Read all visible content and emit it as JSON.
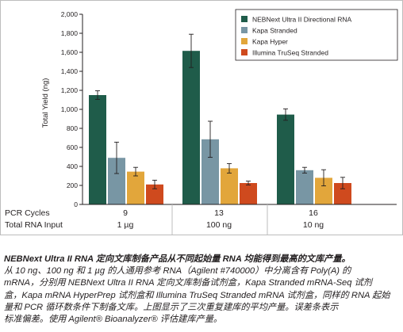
{
  "chart_data": {
    "type": "bar",
    "ylabel": "Total Yield (ng)",
    "ylim": [
      0,
      2000
    ],
    "yticks": [
      0,
      200,
      400,
      600,
      800,
      1000,
      1200,
      1400,
      1600,
      1800,
      2000
    ],
    "ytick_labels": [
      "0",
      "200",
      "400",
      "600",
      "800",
      "1,000",
      "1,200",
      "1,400",
      "1,600",
      "1,800",
      "2,000"
    ],
    "categories": [
      "9",
      "13",
      "16"
    ],
    "row_labels": {
      "pcr_cycles_label": "PCR Cycles",
      "rna_input_label": "Total RNA Input",
      "pcr_cycles": [
        "9",
        "13",
        "16"
      ],
      "rna_input": [
        "1 µg",
        "100 ng",
        "10 ng"
      ]
    },
    "series": [
      {
        "name": "NEBNext Ultra II Directional RNA",
        "color": "#1f5c4a",
        "values": [
          1150,
          1615,
          945
        ],
        "errors": [
          45,
          175,
          60
        ]
      },
      {
        "name": "Kapa Stranded",
        "color": "#7896a4",
        "values": [
          490,
          685,
          360
        ],
        "errors": [
          165,
          190,
          30
        ]
      },
      {
        "name": "Kapa Hyper",
        "color": "#e2a63b",
        "values": [
          345,
          380,
          280
        ],
        "errors": [
          45,
          50,
          85
        ]
      },
      {
        "name": "Illumina TruSeq Stranded",
        "color": "#cf4a1e",
        "values": [
          210,
          225,
          225
        ],
        "errors": [
          45,
          20,
          60
        ]
      }
    ],
    "legend_position": "top-right",
    "grid": false
  },
  "caption": {
    "line1_bold": "NEBNext Ultra II RNA 定向文库制备产品从不同起始量 RNA 均能得到最高的文库产量。",
    "line2": "从 10 ng、100 ng 和 1 µg 的人通用参考 RNA（Agilent #740000）中分离含有 Poly(A) 的",
    "line3": "mRNA，分别用 NEBNext Ultra II RNA 定向文库制备试剂盒，Kapa Stranded mRNA-Seq 试剂",
    "line4": "盒，Kapa mRNA HyperPrep 试剂盒和 Illumina TruSeq Stranded mRNA 试剂盒，同样的 RNA 起始",
    "line5": "量和 PCR 循环数条件下制备文库。上图显示了三次重复建库的平均产量。误差条表示",
    "line6": "标准偏差。使用 Agilent® Bioanalyzer® 评估建库产量。"
  }
}
